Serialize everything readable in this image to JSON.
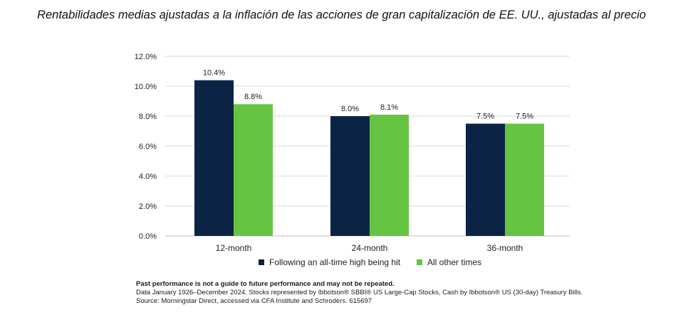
{
  "title": "Rentabilidades medias ajustadas a la inflación de las acciones de gran capitalización de EE. UU., ajustadas al precio",
  "colors": {
    "series1": "#0b2345",
    "series2": "#66c443",
    "grid": "#d9d9d9",
    "axis": "#bfbfbf"
  },
  "chart_data": {
    "type": "bar",
    "categories": [
      "12-month",
      "24-month",
      "36-month"
    ],
    "series": [
      {
        "name": "Following an all-time high being hit",
        "values": [
          10.4,
          8.0,
          7.5
        ],
        "labels": [
          "10.4%",
          "8.0%",
          "7.5%"
        ]
      },
      {
        "name": "All other times",
        "values": [
          8.8,
          8.1,
          7.5
        ],
        "labels": [
          "8.8%",
          "8.1%",
          "7.5%"
        ]
      }
    ],
    "ylim": [
      0,
      12
    ],
    "yticks": [
      "0.0%",
      "2.0%",
      "4.0%",
      "6.0%",
      "8.0%",
      "10.0%",
      "12.0%"
    ],
    "grid": true,
    "legend": "bottom"
  },
  "notes": {
    "line1": "Past performance is not a guide to future performance and may not be repeated.",
    "line2": "Data January 1926–December 2024. Stocks represented by Ibbotson® SBBI® US Large-Cap Stocks, Cash by Ibbotson® US (30-day) Treasury Bills.",
    "line3": "Source: Morningstar Direct, accessed via CFA Institute and Schroders. 615697"
  }
}
